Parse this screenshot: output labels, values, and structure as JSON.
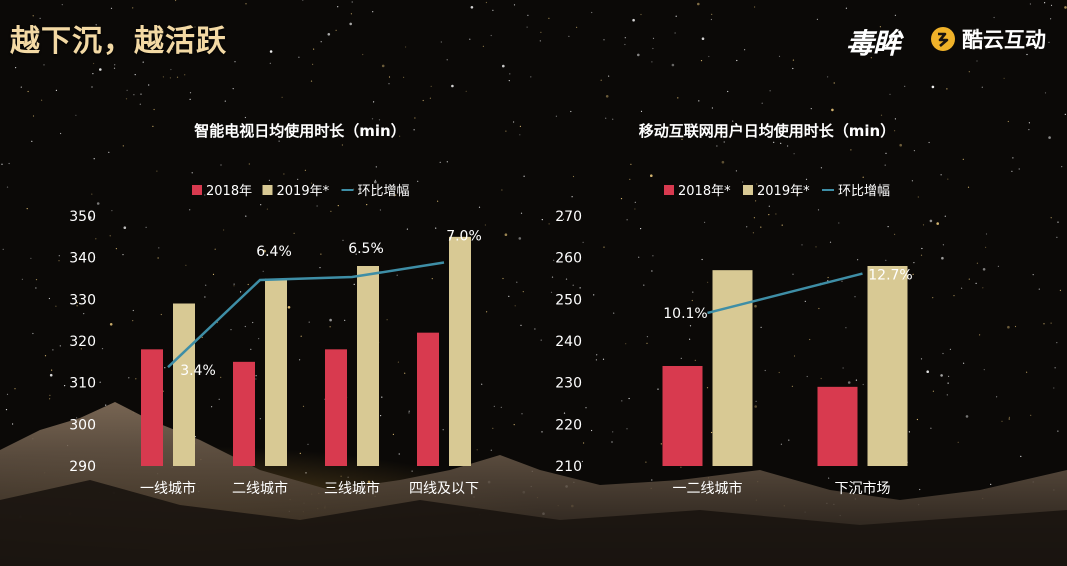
{
  "header": {
    "title": "越下沉，越活跃",
    "logo_main": "毒眸",
    "logo_partner": "酷云互动"
  },
  "colors": {
    "bar2018": "#d83a4f",
    "bar2019": "#d8c994",
    "line": "#3e8ea6",
    "text": "#ffffff"
  },
  "chart_data": [
    {
      "type": "bar",
      "title": "智能电视日均使用时长（min）",
      "categories": [
        "一线城市",
        "二线城市",
        "三线城市",
        "四线及以下"
      ],
      "series": [
        {
          "name": "2018年",
          "kind": "bar",
          "values": [
            318,
            315,
            318,
            322
          ]
        },
        {
          "name": "2019年*",
          "kind": "bar",
          "values": [
            329,
            335,
            338,
            345
          ]
        },
        {
          "name": "环比增幅",
          "kind": "line",
          "values": [
            3.4,
            6.4,
            6.5,
            7.0
          ],
          "labels": [
            "3.4%",
            "6.4%",
            "6.5%",
            "7.0%"
          ],
          "secondary_axis_range": [
            0,
            8.6
          ]
        }
      ],
      "ylim": [
        290,
        350
      ],
      "yticks": [
        290,
        300,
        310,
        320,
        330,
        340,
        350
      ],
      "legend": "top-center",
      "grid": false
    },
    {
      "type": "bar",
      "title": "移动互联网用户日均使用时长（min）",
      "categories": [
        "一二线城市",
        "下沉市场"
      ],
      "series": [
        {
          "name": "2018年*",
          "kind": "bar",
          "values": [
            234,
            229
          ]
        },
        {
          "name": "2019年*",
          "kind": "bar",
          "values": [
            257,
            258
          ]
        },
        {
          "name": "环比增幅",
          "kind": "line",
          "values": [
            10.1,
            12.7
          ],
          "labels": [
            "10.1%",
            "12.7%"
          ],
          "secondary_axis_range": [
            0,
            16.5
          ]
        }
      ],
      "ylim": [
        210,
        270
      ],
      "yticks": [
        210,
        220,
        230,
        240,
        250,
        260,
        270
      ],
      "legend": "top-center",
      "grid": false
    }
  ]
}
